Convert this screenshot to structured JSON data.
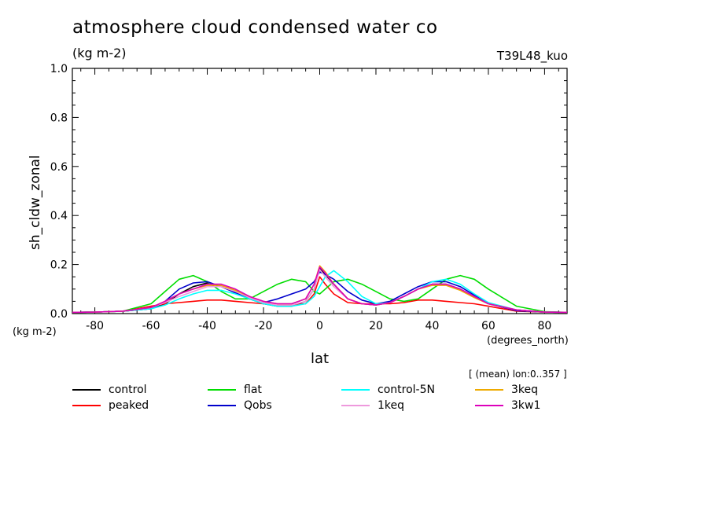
{
  "header": {
    "title": "atmosphere cloud condensed water co",
    "units": "(kg m-2)",
    "experiment": "T39L48_kuo",
    "y_units_label": "(kg m-2)",
    "x_units_label": "(degrees_north)",
    "region_note": "[ (mean) lon:0..357 ]"
  },
  "chart_data": {
    "type": "line",
    "xlabel": "lat",
    "ylabel": "sh_cldw_zonal",
    "xlim": [
      -88,
      88
    ],
    "ylim": [
      0,
      1.0
    ],
    "xticks": [
      -80,
      -60,
      -40,
      -20,
      0,
      20,
      40,
      60,
      80
    ],
    "yticks": [
      0.0,
      0.2,
      0.4,
      0.6,
      0.8,
      1.0
    ],
    "ytick_labels": [
      "0.0",
      "0.2",
      "0.4",
      "0.6",
      "0.8",
      "1.0"
    ],
    "grid": false,
    "legend_position": "bottom",
    "x": [
      -88,
      -80,
      -70,
      -60,
      -55,
      -50,
      -45,
      -40,
      -35,
      -30,
      -25,
      -20,
      -15,
      -10,
      -5,
      -2,
      0,
      2,
      5,
      10,
      15,
      20,
      25,
      30,
      35,
      40,
      45,
      50,
      55,
      60,
      70,
      80,
      88
    ],
    "series": [
      {
        "name": "control",
        "color": "#000000",
        "values": [
          0.005,
          0.006,
          0.01,
          0.02,
          0.04,
          0.08,
          0.11,
          0.125,
          0.11,
          0.085,
          0.06,
          0.04,
          0.03,
          0.03,
          0.05,
          0.1,
          0.185,
          0.16,
          0.12,
          0.06,
          0.04,
          0.035,
          0.045,
          0.07,
          0.1,
          0.12,
          0.12,
          0.1,
          0.07,
          0.04,
          0.015,
          0.006,
          0.005
        ]
      },
      {
        "name": "peaked",
        "color": "#ff0000",
        "values": [
          0.005,
          0.006,
          0.01,
          0.03,
          0.04,
          0.045,
          0.05,
          0.055,
          0.055,
          0.05,
          0.045,
          0.04,
          0.035,
          0.035,
          0.04,
          0.08,
          0.15,
          0.12,
          0.08,
          0.045,
          0.04,
          0.04,
          0.04,
          0.045,
          0.055,
          0.055,
          0.05,
          0.045,
          0.04,
          0.03,
          0.01,
          0.006,
          0.005
        ]
      },
      {
        "name": "flat",
        "color": "#00dd00",
        "values": [
          0.005,
          0.006,
          0.01,
          0.04,
          0.09,
          0.14,
          0.155,
          0.13,
          0.09,
          0.06,
          0.06,
          0.09,
          0.12,
          0.14,
          0.13,
          0.09,
          0.08,
          0.1,
          0.13,
          0.14,
          0.12,
          0.09,
          0.06,
          0.05,
          0.06,
          0.1,
          0.14,
          0.155,
          0.14,
          0.1,
          0.03,
          0.008,
          0.005
        ]
      },
      {
        "name": "Qobs",
        "color": "#0000cc",
        "values": [
          0.005,
          0.006,
          0.01,
          0.02,
          0.05,
          0.1,
          0.125,
          0.13,
          0.11,
          0.085,
          0.06,
          0.045,
          0.06,
          0.08,
          0.1,
          0.13,
          0.17,
          0.16,
          0.14,
          0.09,
          0.055,
          0.04,
          0.05,
          0.08,
          0.11,
          0.13,
          0.13,
          0.11,
          0.075,
          0.04,
          0.012,
          0.006,
          0.005
        ]
      },
      {
        "name": "control-5N",
        "color": "#00ffff",
        "values": [
          0.005,
          0.006,
          0.01,
          0.02,
          0.035,
          0.06,
          0.08,
          0.095,
          0.095,
          0.08,
          0.06,
          0.04,
          0.03,
          0.03,
          0.04,
          0.07,
          0.11,
          0.15,
          0.175,
          0.13,
          0.07,
          0.04,
          0.045,
          0.07,
          0.1,
          0.13,
          0.14,
          0.12,
          0.08,
          0.045,
          0.015,
          0.006,
          0.005
        ]
      },
      {
        "name": "1keq",
        "color": "#ee99dd",
        "values": [
          0.005,
          0.006,
          0.01,
          0.025,
          0.045,
          0.07,
          0.09,
          0.11,
          0.11,
          0.09,
          0.065,
          0.045,
          0.035,
          0.035,
          0.05,
          0.1,
          0.18,
          0.15,
          0.11,
          0.06,
          0.04,
          0.035,
          0.045,
          0.07,
          0.1,
          0.12,
          0.12,
          0.1,
          0.07,
          0.04,
          0.015,
          0.006,
          0.005
        ]
      },
      {
        "name": "3keq",
        "color": "#eeaa00",
        "values": [
          0.005,
          0.006,
          0.01,
          0.025,
          0.05,
          0.08,
          0.1,
          0.115,
          0.115,
          0.095,
          0.07,
          0.05,
          0.04,
          0.04,
          0.06,
          0.12,
          0.195,
          0.17,
          0.12,
          0.06,
          0.04,
          0.035,
          0.045,
          0.07,
          0.1,
          0.115,
          0.115,
          0.095,
          0.065,
          0.04,
          0.015,
          0.006,
          0.005
        ]
      },
      {
        "name": "3kw1",
        "color": "#dd00bb",
        "values": [
          0.005,
          0.006,
          0.01,
          0.025,
          0.05,
          0.08,
          0.1,
          0.12,
          0.12,
          0.1,
          0.07,
          0.05,
          0.04,
          0.04,
          0.06,
          0.12,
          0.19,
          0.165,
          0.12,
          0.06,
          0.04,
          0.035,
          0.045,
          0.07,
          0.1,
          0.12,
          0.12,
          0.1,
          0.07,
          0.04,
          0.015,
          0.006,
          0.005
        ]
      }
    ]
  }
}
